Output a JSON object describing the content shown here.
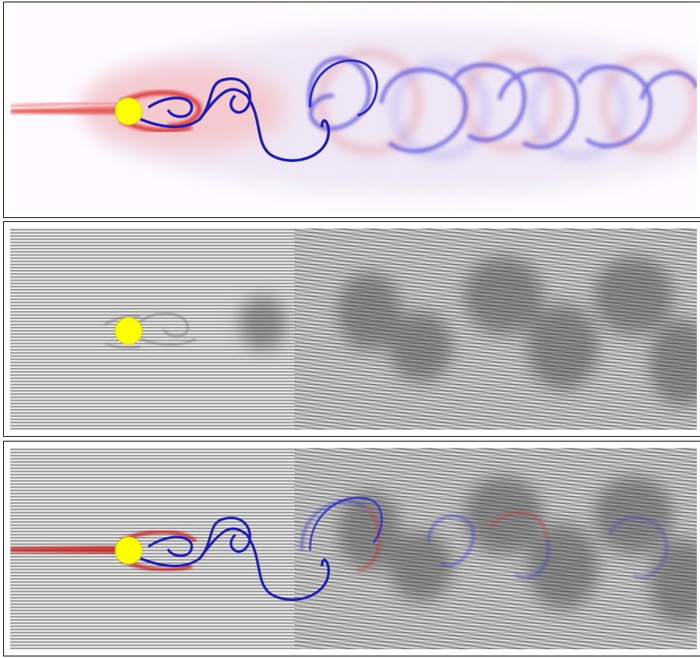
{
  "panels": [
    {
      "id": "vorticity",
      "view": "vorticity-field"
    },
    {
      "id": "lic",
      "view": "line-integral-convolution"
    },
    {
      "id": "overlay",
      "view": "lic-with-vorticity-overlay"
    }
  ],
  "colors": {
    "cylinder": "#ffff00",
    "negative_vorticity": "#e11a1a",
    "positive_vorticity": "#1a1ad9",
    "lic_dark": "#3a3a3a",
    "lic_light": "#d8d8d8",
    "background": "#ffffff"
  },
  "icons": [
    "cylinder-obstacle"
  ]
}
